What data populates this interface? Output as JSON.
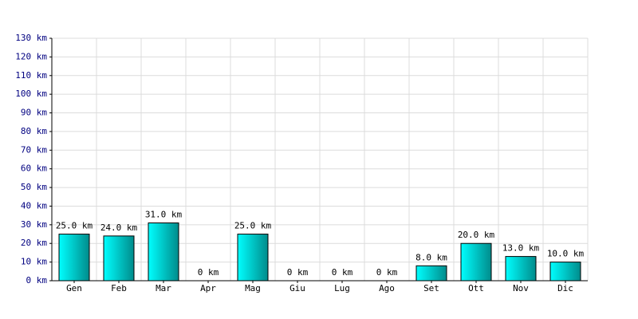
{
  "chart_data": {
    "type": "bar",
    "categories": [
      "Gen",
      "Feb",
      "Mar",
      "Apr",
      "Mag",
      "Giu",
      "Lug",
      "Ago",
      "Set",
      "Ott",
      "Nov",
      "Dic"
    ],
    "values": [
      25,
      24,
      31,
      0,
      25,
      0,
      0,
      0,
      8,
      20,
      13,
      10
    ],
    "value_labels": [
      "25.0 km",
      "24.0 km",
      "31.0 km",
      "0 km",
      "25.0 km",
      "0 km",
      "0 km",
      "0 km",
      "8.0 km",
      "20.0 km",
      "13.0 km",
      "10.0 km"
    ],
    "color": "#00c8c8",
    "ylim": [
      0,
      130
    ],
    "yticks": [
      {
        "value": 0,
        "label": "0 km"
      },
      {
        "value": 10,
        "label": "10 km"
      },
      {
        "value": 20,
        "label": "20 km"
      },
      {
        "value": 30,
        "label": "30 km"
      },
      {
        "value": 40,
        "label": "40 km"
      },
      {
        "value": 50,
        "label": "50 km"
      },
      {
        "value": 60,
        "label": "60 km"
      },
      {
        "value": 70,
        "label": "70 km"
      },
      {
        "value": 80,
        "label": "80 km"
      },
      {
        "value": 90,
        "label": "90 km"
      },
      {
        "value": 100,
        "label": "100 km"
      },
      {
        "value": 110,
        "label": "110 km"
      },
      {
        "value": 120,
        "label": "120 km"
      },
      {
        "value": 130,
        "label": "130 km"
      }
    ],
    "grid": true
  }
}
